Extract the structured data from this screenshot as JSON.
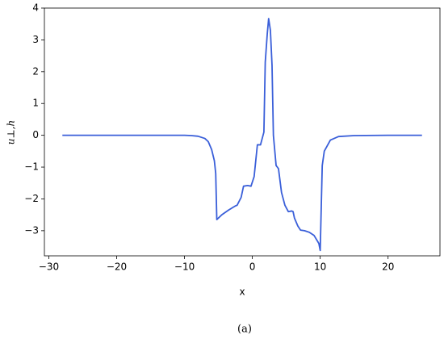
{
  "chart_data": {
    "type": "line",
    "x_label": "x",
    "y_label": "u⊥,h",
    "caption": "(a)",
    "color": "#3a5fd9",
    "x": [
      -28,
      -20,
      -12,
      -10,
      -9,
      -8,
      -7,
      -6.5,
      -6,
      -5.6,
      -5.4,
      -5.24,
      -4.5,
      -3.5,
      -2.5,
      -2.25,
      -1.65,
      -1.3,
      -0.7,
      -0.2,
      0.26,
      0.74,
      1.2,
      1.7,
      1.9,
      2.2,
      2.4,
      2.66,
      2.9,
      3.1,
      3.5,
      3.85,
      4.3,
      4.8,
      5.3,
      5.8,
      6.0,
      6.2,
      6.7,
      7.1,
      7.7,
      8.4,
      9.1,
      9.8,
      10.0,
      10.3,
      10.6,
      11.5,
      12.7,
      15,
      20,
      25
    ],
    "values": [
      0,
      0,
      0,
      0,
      -0.01,
      -0.03,
      -0.1,
      -0.2,
      -0.45,
      -0.8,
      -1.2,
      -2.65,
      -2.5,
      -2.35,
      -2.22,
      -2.2,
      -1.95,
      -1.6,
      -1.58,
      -1.6,
      -1.3,
      -0.3,
      -0.3,
      0.1,
      2.3,
      3.2,
      3.67,
      3.3,
      2.2,
      0,
      -0.95,
      -1.05,
      -1.8,
      -2.2,
      -2.4,
      -2.38,
      -2.4,
      -2.6,
      -2.85,
      -2.98,
      -3.0,
      -3.05,
      -3.15,
      -3.4,
      -3.62,
      -0.95,
      -0.5,
      -0.15,
      -0.04,
      -0.01,
      0,
      0
    ],
    "xlim": [
      -30.65,
      27.65
    ],
    "ylim": [
      -3.79,
      4.0
    ],
    "xticks": [
      {
        "value": -30,
        "label": "−30"
      },
      {
        "value": -20,
        "label": "−20"
      },
      {
        "value": -10,
        "label": "−10"
      },
      0,
      10,
      20
    ],
    "yticks": [
      {
        "value": -3,
        "label": "−3"
      },
      {
        "value": -2,
        "label": "−2"
      },
      {
        "value": -1,
        "label": "−1"
      },
      0,
      1,
      2,
      3,
      4
    ]
  }
}
